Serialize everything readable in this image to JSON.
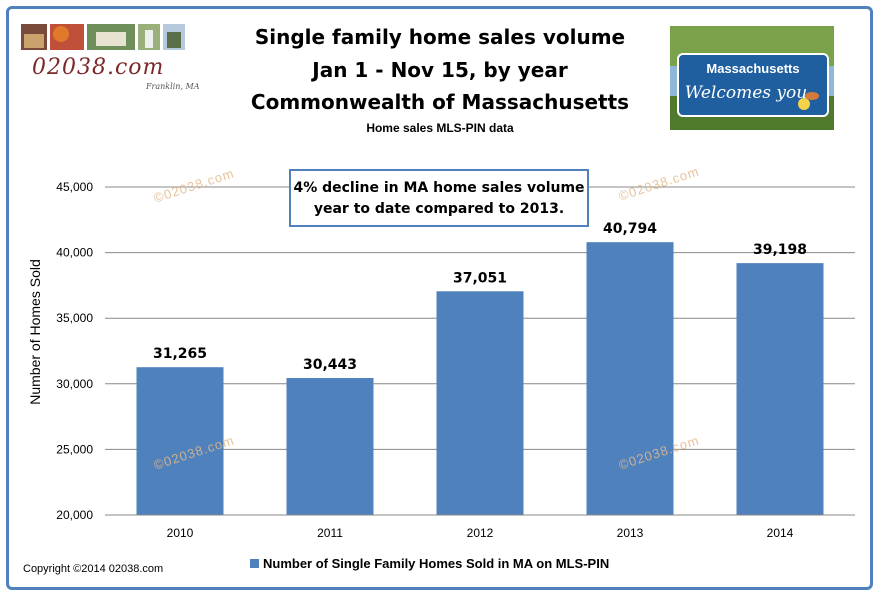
{
  "header": {
    "title_line1": "Single family home sales volume",
    "title_line2": "Jan 1 - Nov 15, by year",
    "title_line3": "Commonwealth of Massachusetts",
    "subtitle": "Home sales MLS-PIN data"
  },
  "logo": {
    "site": "02038.com",
    "location": "Franklin, MA"
  },
  "sign": {
    "line1": "Massachusetts",
    "line2": "Welcomes you"
  },
  "annotation": {
    "line1": "4% decline in MA home sales volume",
    "line2": "year to date compared to 2013."
  },
  "watermark": "©02038.com",
  "copyright": "Copyright ©2014 02038.com",
  "colors": {
    "bar": "#4f81bd",
    "frame": "#4f81bd",
    "gridline": "#888888"
  },
  "chart_data": {
    "type": "bar",
    "categories": [
      "2010",
      "2011",
      "2012",
      "2013",
      "2014"
    ],
    "series": [
      {
        "name": "Number of Single Family Homes Sold in MA on MLS-PIN",
        "values": [
          31265,
          30443,
          37051,
          40794,
          39198
        ]
      }
    ],
    "data_labels": [
      "31,265",
      "30,443",
      "37,051",
      "40,794",
      "39,198"
    ],
    "ylabel": "Number of Homes Sold",
    "xlabel": "",
    "ylim": [
      20000,
      45000
    ],
    "yticks": [
      20000,
      25000,
      30000,
      35000,
      40000,
      45000
    ],
    "ytick_labels": [
      "20,000",
      "25,000",
      "30,000",
      "35,000",
      "40,000",
      "45,000"
    ],
    "grid": true,
    "legend": "bottom"
  }
}
